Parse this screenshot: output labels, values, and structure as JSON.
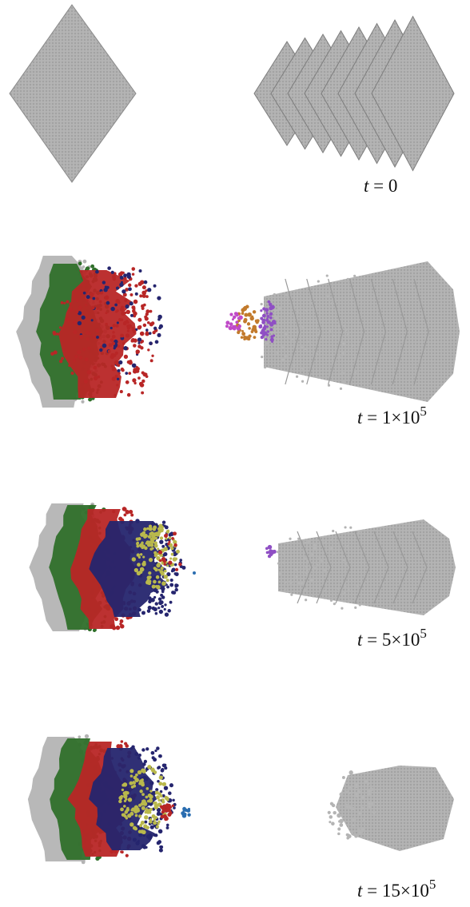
{
  "panels": [
    {
      "label": {
        "var": "t",
        "rest": " = 0"
      }
    },
    {
      "label": {
        "var": "t",
        "rest": " = 1×10",
        "sup": "5"
      }
    },
    {
      "label": {
        "var": "t",
        "rest": " = 5×10",
        "sup": "5"
      }
    },
    {
      "label": {
        "var": "t",
        "rest": " = 15×10",
        "sup": "5"
      }
    }
  ]
}
